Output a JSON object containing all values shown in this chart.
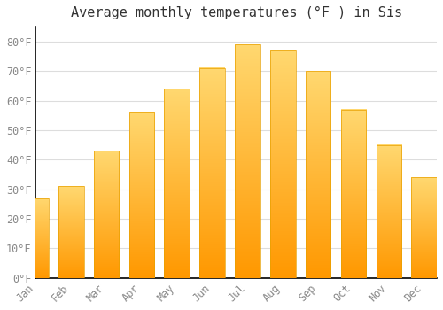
{
  "title": "Average monthly temperatures (°F ) in Sis",
  "months": [
    "Jan",
    "Feb",
    "Mar",
    "Apr",
    "May",
    "Jun",
    "Jul",
    "Aug",
    "Sep",
    "Oct",
    "Nov",
    "Dec"
  ],
  "values": [
    27,
    31,
    43,
    56,
    64,
    71,
    79,
    77,
    70,
    57,
    45,
    34
  ],
  "bar_color_top": "#FFA500",
  "bar_color_bottom": "#FFD060",
  "bar_edge_color": "#E8A000",
  "background_color": "#FFFFFF",
  "grid_color": "#DDDDDD",
  "text_color": "#888888",
  "spine_color": "#000000",
  "ylim": [
    0,
    85
  ],
  "yticks": [
    0,
    10,
    20,
    30,
    40,
    50,
    60,
    70,
    80
  ],
  "title_fontsize": 11,
  "tick_fontsize": 8.5,
  "bar_width": 0.72
}
